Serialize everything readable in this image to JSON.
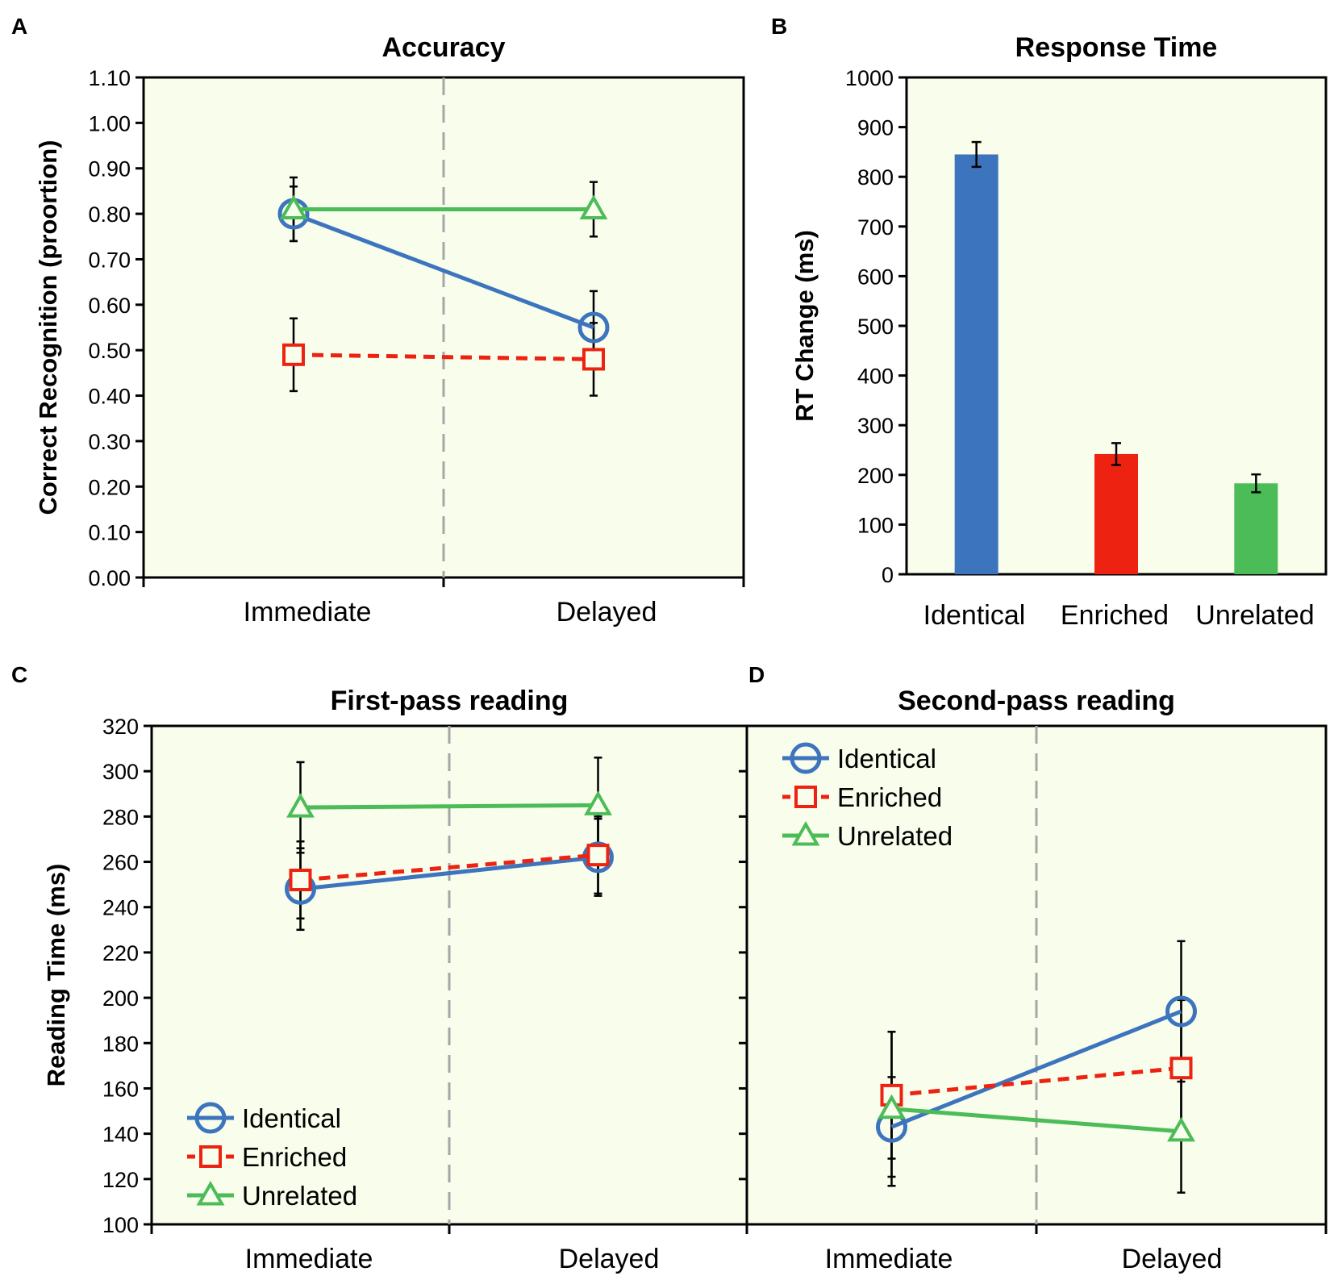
{
  "colors": {
    "identical": "#3c74bd",
    "enriched": "#ee2211",
    "unrelated": "#4cbc58",
    "panel_bg": "#f8fdec",
    "divider": "#a6a6a6"
  },
  "chart_data": [
    {
      "panel": "A",
      "type": "line",
      "title": "Accuracy",
      "xlabel": "",
      "ylabel": "Correct Recognition (proortion)",
      "categories": [
        "Immediate",
        "Delayed"
      ],
      "ylim": [
        0,
        1.1
      ],
      "yticks": [
        "0.00",
        "0.10",
        "0.20",
        "0.30",
        "0.40",
        "0.50",
        "0.60",
        "0.70",
        "0.80",
        "0.90",
        "1.00",
        "1.10"
      ],
      "series": [
        {
          "name": "Identical",
          "values": [
            0.8,
            0.55
          ],
          "errors": [
            0.06,
            0.08
          ]
        },
        {
          "name": "Enriched",
          "values": [
            0.49,
            0.48
          ],
          "errors": [
            0.08,
            0.08
          ]
        },
        {
          "name": "Unrelated",
          "values": [
            0.81,
            0.81
          ],
          "errors": [
            0.07,
            0.06
          ]
        }
      ]
    },
    {
      "panel": "B",
      "type": "bar",
      "title": "Response Time",
      "xlabel": "",
      "ylabel": "RT Change (ms)",
      "categories": [
        "Identical",
        "Enriched",
        "Unrelated"
      ],
      "ylim": [
        0,
        1000
      ],
      "yticks": [
        "0",
        "100",
        "200",
        "300",
        "400",
        "500",
        "600",
        "700",
        "800",
        "900",
        "1000"
      ],
      "values": [
        845,
        242,
        183
      ],
      "errors": [
        25,
        22,
        18
      ]
    },
    {
      "panel": "C",
      "type": "line",
      "title": "First-pass reading",
      "xlabel": "",
      "ylabel": "Reading Time (ms)",
      "categories": [
        "Immediate",
        "Delayed"
      ],
      "ylim": [
        100,
        320
      ],
      "yticks": [
        "100",
        "120",
        "140",
        "160",
        "180",
        "200",
        "220",
        "240",
        "260",
        "280",
        "300",
        "320"
      ],
      "legend": "lower-left",
      "series": [
        {
          "name": "Identical",
          "values": [
            248,
            262
          ],
          "errors": [
            18,
            17
          ]
        },
        {
          "name": "Enriched",
          "values": [
            252,
            263
          ],
          "errors": [
            17,
            17
          ]
        },
        {
          "name": "Unrelated",
          "values": [
            284,
            285
          ],
          "errors": [
            20,
            21
          ]
        }
      ]
    },
    {
      "panel": "D",
      "type": "line",
      "title": "Second-pass reading",
      "xlabel": "",
      "ylabel": "",
      "categories": [
        "Immediate",
        "Delayed"
      ],
      "ylim": [
        100,
        320
      ],
      "legend": "upper-left",
      "series": [
        {
          "name": "Identical",
          "values": [
            143,
            194
          ],
          "errors": [
            22,
            31
          ]
        },
        {
          "name": "Enriched",
          "values": [
            157,
            169
          ],
          "errors": [
            28,
            30
          ]
        },
        {
          "name": "Unrelated",
          "values": [
            151,
            141
          ],
          "errors": [
            34,
            27
          ]
        }
      ]
    }
  ]
}
